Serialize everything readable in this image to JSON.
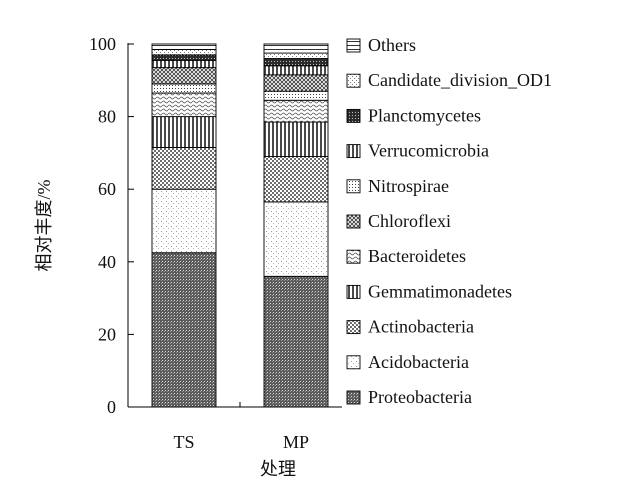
{
  "chart_data": {
    "type": "bar",
    "stacked": true,
    "title": "",
    "xlabel": "处理",
    "ylabel": "相对丰度/%",
    "ylim": [
      0,
      100
    ],
    "yticks": [
      0,
      20,
      40,
      60,
      80,
      100
    ],
    "categories": [
      "TS",
      "MP"
    ],
    "legend_position": "right",
    "series": [
      {
        "name": "Proteobacteria",
        "pattern": "dense-dark",
        "values": [
          42.5,
          36.0
        ]
      },
      {
        "name": "Acidobacteria",
        "pattern": "sparse-dots",
        "values": [
          17.5,
          20.5
        ]
      },
      {
        "name": "Actinobacteria",
        "pattern": "checker",
        "values": [
          11.5,
          12.5
        ]
      },
      {
        "name": "Gemmatimonadetes",
        "pattern": "vertical-lines",
        "values": [
          8.5,
          9.5
        ]
      },
      {
        "name": "Bacteroidetes",
        "pattern": "wave",
        "values": [
          6.5,
          6.0
        ]
      },
      {
        "name": "Nitrospirae",
        "pattern": "dots",
        "values": [
          2.5,
          2.5
        ]
      },
      {
        "name": "Chloroflexi",
        "pattern": "crosshatch",
        "values": [
          4.5,
          4.5
        ]
      },
      {
        "name": "Verrucomicrobia",
        "pattern": "vertical-lines",
        "values": [
          2.0,
          2.5
        ]
      },
      {
        "name": "Planctomycetes",
        "pattern": "dark-crosshatch",
        "values": [
          1.5,
          2.0
        ]
      },
      {
        "name": "Candidate_division_OD1",
        "pattern": "light-dots",
        "values": [
          1.5,
          1.5
        ]
      },
      {
        "name": "Others",
        "pattern": "horizontal-lines",
        "values": [
          1.5,
          2.5
        ]
      }
    ],
    "legend_order": [
      "Others",
      "Candidate_division_OD1",
      "Planctomycetes",
      "Verrucomicrobia",
      "Nitrospirae",
      "Chloroflexi",
      "Bacteroidetes",
      "Gemmatimonadetes",
      "Actinobacteria",
      "Acidobacteria",
      "Proteobacteria"
    ]
  }
}
